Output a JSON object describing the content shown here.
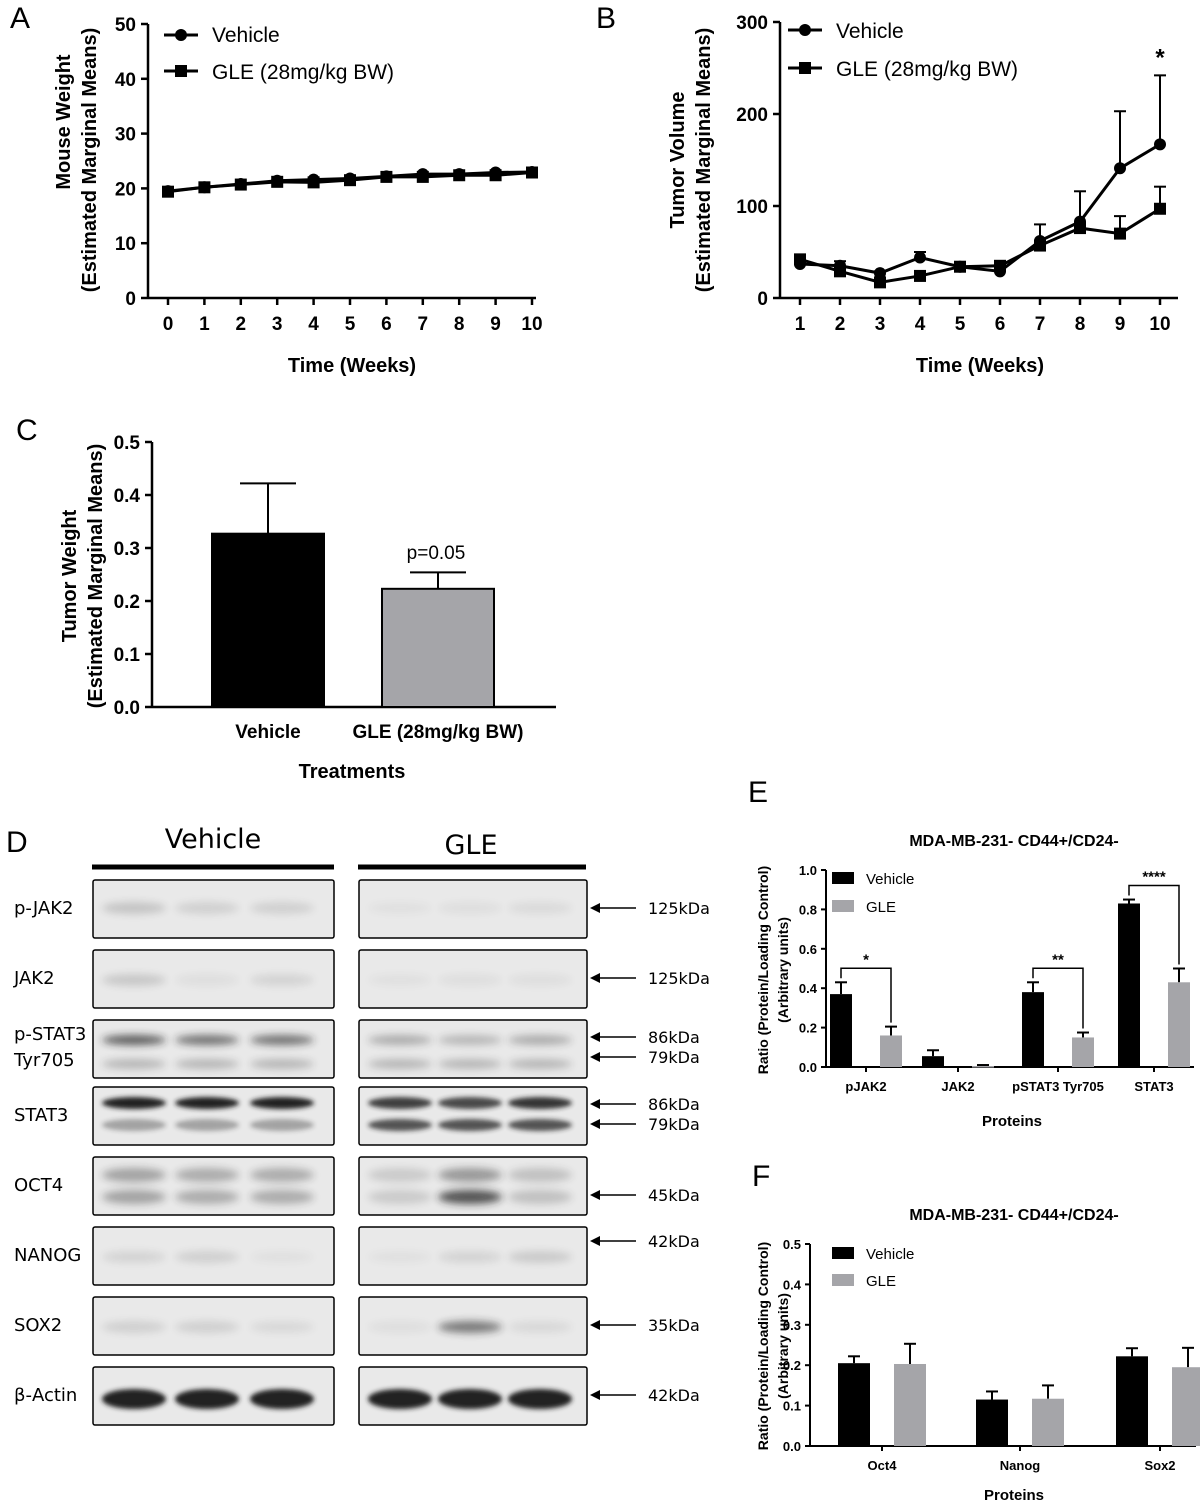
{
  "panel_letters": [
    "A",
    "B",
    "C",
    "D",
    "E",
    "F"
  ],
  "chart_data": [
    {
      "id": "A",
      "type": "line",
      "title": "",
      "xlabel": "Time (Weeks)",
      "ylabel_lines": [
        "Mouse Weight",
        "(Estimated Marginal Means)"
      ],
      "x": [
        0,
        1,
        2,
        3,
        4,
        5,
        6,
        7,
        8,
        9,
        10
      ],
      "ylim": [
        0,
        50
      ],
      "yticks": [
        0,
        10,
        20,
        30,
        40,
        50
      ],
      "series": [
        {
          "name": "Vehicle",
          "marker": "circle",
          "values": [
            19.5,
            20.2,
            20.8,
            21.4,
            21.6,
            21.8,
            22.2,
            22.6,
            22.6,
            22.9,
            23.0
          ]
        },
        {
          "name": "GLE (28mg/kg BW)",
          "marker": "square",
          "values": [
            19.4,
            20.2,
            20.7,
            21.2,
            21.1,
            21.5,
            22.1,
            22.1,
            22.4,
            22.4,
            22.9
          ]
        }
      ]
    },
    {
      "id": "B",
      "type": "line",
      "title": "",
      "xlabel": "Time (Weeks)",
      "ylabel_lines": [
        "Tumor Volume",
        "(Estimated Marginal Means)"
      ],
      "x": [
        1,
        2,
        3,
        4,
        5,
        6,
        7,
        8,
        9,
        10
      ],
      "ylim": [
        0,
        300
      ],
      "yticks": [
        0,
        100,
        200,
        300
      ],
      "annotations": [
        {
          "x": 10,
          "text": "*"
        }
      ],
      "series": [
        {
          "name": "Vehicle",
          "marker": "circle",
          "values": [
            37,
            35,
            27,
            44,
            34,
            29,
            62,
            83,
            141,
            167
          ],
          "errors": [
            4,
            5,
            2,
            6,
            2,
            2,
            18,
            33,
            62,
            75
          ]
        },
        {
          "name": "GLE (28mg/kg BW)",
          "marker": "square",
          "values": [
            42,
            29,
            17,
            24,
            34,
            35,
            57,
            76,
            70,
            97
          ],
          "errors": [
            4,
            3,
            2,
            2,
            2,
            3,
            5,
            6,
            19,
            24
          ]
        }
      ]
    },
    {
      "id": "C",
      "type": "bar",
      "title": "",
      "xlabel": "Treatments",
      "ylabel_lines": [
        "Tumor Weight",
        "(Estimated Marginal Means)"
      ],
      "categories": [
        "Vehicle",
        "GLE (28mg/kg BW)"
      ],
      "values": [
        0.327,
        0.223
      ],
      "errors": [
        0.095,
        0.031
      ],
      "colors": [
        "#000000",
        "#a5a5a9"
      ],
      "ylim": [
        0,
        0.5
      ],
      "yticks": [
        "0.0",
        "0.1",
        "0.2",
        "0.3",
        "0.4",
        "0.5"
      ],
      "annotation": "p=0.05"
    },
    {
      "id": "E",
      "type": "bar",
      "title": "MDA-MB-231- CD44+/CD24-",
      "xlabel": "Proteins",
      "ylabel_lines": [
        "Ratio (Protein/Loading Control)",
        "(Arbitrary units)"
      ],
      "categories": [
        "pJAK2",
        "JAK2",
        "pSTAT3 Tyr705",
        "STAT3"
      ],
      "ylim": [
        0,
        1.0
      ],
      "yticks": [
        "0.0",
        "0.2",
        "0.4",
        "0.6",
        "0.8",
        "1.0"
      ],
      "series": [
        {
          "name": "Vehicle",
          "color": "#000000",
          "values": [
            0.37,
            0.055,
            0.38,
            0.83
          ],
          "errors": [
            0.06,
            0.03,
            0.05,
            0.02
          ]
        },
        {
          "name": "GLE",
          "color": "#a5a5a9",
          "values": [
            0.16,
            0.005,
            0.15,
            0.43
          ],
          "errors": [
            0.045,
            0.005,
            0.025,
            0.07
          ]
        }
      ],
      "significance": [
        {
          "category": "pJAK2",
          "text": "*"
        },
        {
          "category": "pSTAT3 Tyr705",
          "text": "**"
        },
        {
          "category": "STAT3",
          "text": "****"
        }
      ]
    },
    {
      "id": "F",
      "type": "bar",
      "title": "MDA-MB-231- CD44+/CD24-",
      "xlabel": "Proteins",
      "ylabel_lines": [
        "Ratio (Protein/Loading Control)",
        "(Arbitrary units)"
      ],
      "categories": [
        "Oct4",
        "Nanog",
        "Sox2"
      ],
      "ylim": [
        0,
        0.5
      ],
      "yticks": [
        "0.0",
        "0.1",
        "0.2",
        "0.3",
        "0.4",
        "0.5"
      ],
      "series": [
        {
          "name": "Vehicle",
          "color": "#000000",
          "values": [
            0.205,
            0.115,
            0.222
          ],
          "errors": [
            0.017,
            0.02,
            0.02
          ]
        },
        {
          "name": "GLE",
          "color": "#a5a5a9",
          "values": [
            0.203,
            0.117,
            0.195
          ],
          "errors": [
            0.05,
            0.033,
            0.048
          ]
        }
      ]
    }
  ],
  "western_blot": {
    "groups": [
      "Vehicle",
      "GLE"
    ],
    "rows": [
      {
        "label": "p-JAK2",
        "kda": [
          "125kDa"
        ]
      },
      {
        "label": "JAK2",
        "kda": [
          "125kDa"
        ]
      },
      {
        "label": "p-STAT3\nTyr705",
        "kda": [
          "86kDa",
          "79kDa"
        ]
      },
      {
        "label": "STAT3",
        "kda": [
          "86kDa",
          "79kDa"
        ]
      },
      {
        "label": "OCT4",
        "kda": [
          "45kDa"
        ]
      },
      {
        "label": "NANOG",
        "kda": [
          "42kDa"
        ]
      },
      {
        "label": "SOX2",
        "kda": [
          "35kDa"
        ]
      },
      {
        "label": "β-Actin",
        "kda": [
          "42kDa"
        ]
      }
    ]
  }
}
